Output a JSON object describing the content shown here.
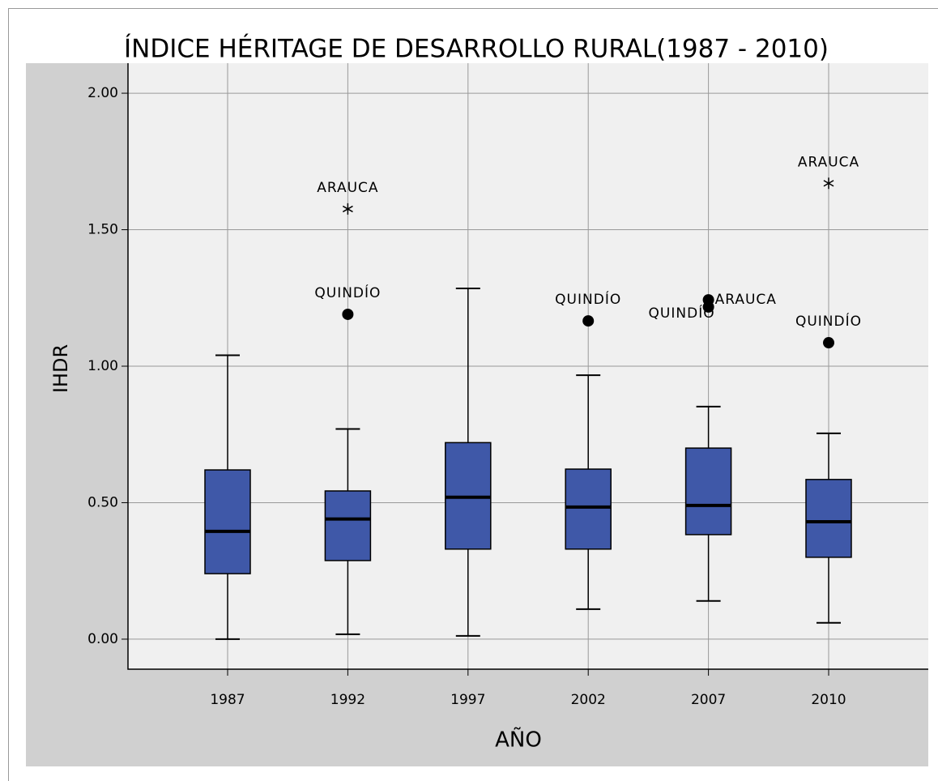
{
  "chart_data": {
    "type": "box",
    "title": "ÍNDICE HÉRITAGE DE DESARROLLO RURAL(1987 - 2010)",
    "x_label": "AÑO",
    "y_label": "IHDR",
    "categories": [
      "1987",
      "1992",
      "1997",
      "2002",
      "2007",
      "2010"
    ],
    "color": "#3f58a8",
    "boxes": [
      {
        "min": 0.0,
        "q1": 0.24,
        "median": 0.395,
        "q3": 0.62,
        "max": 1.04,
        "outliers": []
      },
      {
        "min": 0.018,
        "q1": 0.288,
        "median": 0.44,
        "q3": 0.543,
        "max": 0.77,
        "outliers": [
          {
            "label": "QUINDÍO",
            "value": 1.19,
            "marker": "circle"
          },
          {
            "label": "ARAUCA",
            "value": 1.576,
            "marker": "star"
          }
        ]
      },
      {
        "min": 0.012,
        "q1": 0.33,
        "median": 0.52,
        "q3": 0.72,
        "max": 1.285,
        "outliers": []
      },
      {
        "min": 0.11,
        "q1": 0.33,
        "median": 0.484,
        "q3": 0.623,
        "max": 0.967,
        "outliers": [
          {
            "label": "QUINDÍO",
            "value": 1.166,
            "marker": "circle"
          }
        ]
      },
      {
        "min": 0.14,
        "q1": 0.383,
        "median": 0.49,
        "q3": 0.7,
        "max": 0.852,
        "outliers": [
          {
            "label": "ARAUCA",
            "value": 1.243,
            "marker": "circle"
          },
          {
            "label": "QUINDÍO",
            "value": 1.217,
            "marker": "circle"
          }
        ]
      },
      {
        "min": 0.06,
        "q1": 0.3,
        "median": 0.43,
        "q3": 0.585,
        "max": 0.754,
        "outliers": [
          {
            "label": "QUINDÍO",
            "value": 1.086,
            "marker": "circle"
          },
          {
            "label": "ARAUCA",
            "value": 1.67,
            "marker": "star"
          }
        ]
      }
    ],
    "ylim": [
      -0.11,
      2.11
    ],
    "yticks": [
      {
        "value": 0,
        "label": "0.00"
      },
      {
        "value": 0.5,
        "label": "0.50"
      },
      {
        "value": 1,
        "label": "1.00"
      },
      {
        "value": 1.5,
        "label": "1.50"
      },
      {
        "value": 2,
        "label": "2.00"
      }
    ],
    "grid": true
  }
}
